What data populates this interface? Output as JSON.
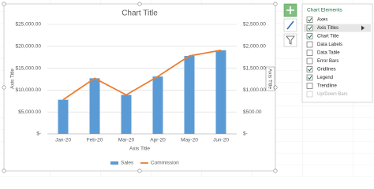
{
  "chart_data": {
    "type": "bar-line",
    "title": "Chart Title",
    "x_label": "Axis Title",
    "y_label": "Axis Title",
    "y2_label": "Axis Title",
    "categories": [
      "Jan-20",
      "Feb-20",
      "Mar-20",
      "Apr-20",
      "May-20",
      "Jun-20"
    ],
    "series": [
      {
        "name": "Sales",
        "type": "bar",
        "color": "#5b9bd5",
        "values": [
          7800,
          12700,
          8900,
          13100,
          17800,
          19100
        ]
      },
      {
        "name": "Commission",
        "type": "line",
        "axis": "y2",
        "color": "#ed7d31",
        "values": [
          780,
          1270,
          890,
          1310,
          1780,
          1910
        ]
      }
    ],
    "ylim": [
      0,
      25000
    ],
    "yticks": [
      {
        "value": 0,
        "label": "$-"
      },
      {
        "value": 5000,
        "label": "$5,000.00"
      },
      {
        "value": 10000,
        "label": "$10,000.00"
      },
      {
        "value": 15000,
        "label": "$15,000.00"
      },
      {
        "value": 20000,
        "label": "$20,000.00"
      },
      {
        "value": 25000,
        "label": "$25,000.00"
      }
    ],
    "y2lim": [
      0,
      2500
    ],
    "y2ticks": [
      {
        "value": 0,
        "label": "$-"
      },
      {
        "value": 500,
        "label": "$500.00"
      },
      {
        "value": 1000,
        "label": "$1,000.00"
      },
      {
        "value": 1500,
        "label": "$1,500.00"
      },
      {
        "value": 2000,
        "label": "$2,000.00"
      },
      {
        "value": 2500,
        "label": "$2,500.00"
      }
    ],
    "grid": true,
    "legend": "bottom"
  },
  "panel": {
    "title": "Chart Elements",
    "items": [
      {
        "label": "Axes",
        "checked": true
      },
      {
        "label": "Axis Titles",
        "checked": true,
        "selected": true
      },
      {
        "label": "Chart Title",
        "checked": true
      },
      {
        "label": "Data Labels",
        "checked": false
      },
      {
        "label": "Data Table",
        "checked": false
      },
      {
        "label": "Error Bars",
        "checked": false
      },
      {
        "label": "Gridlines",
        "checked": true
      },
      {
        "label": "Legend",
        "checked": true
      },
      {
        "label": "Trendline",
        "checked": false
      },
      {
        "label": "Up/Down Bars",
        "checked": false,
        "enabled": false
      }
    ]
  }
}
